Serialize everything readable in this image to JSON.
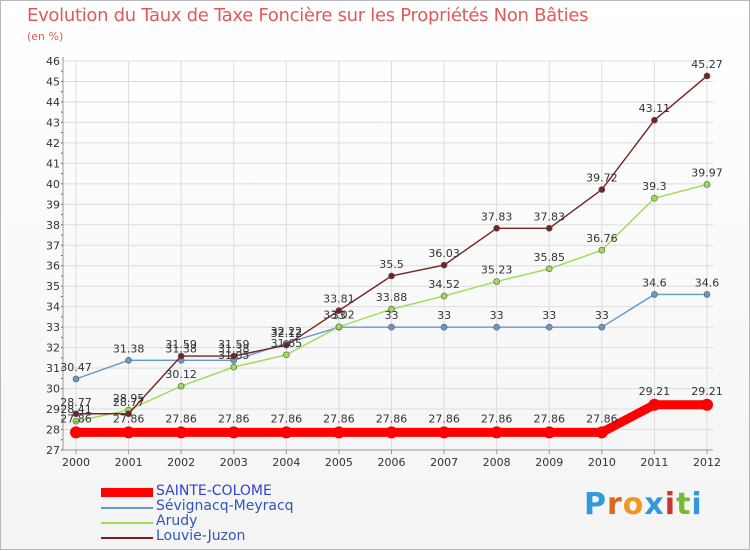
{
  "chart_data": {
    "type": "line",
    "title": "Evolution du Taux de Taxe Foncière sur les Propriétés Non Bâties",
    "subtitle": "(en %)",
    "categories": [
      "2000",
      "2001",
      "2002",
      "2003",
      "2004",
      "2005",
      "2006",
      "2007",
      "2008",
      "2009",
      "2010",
      "2011",
      "2012"
    ],
    "ylim": [
      27,
      46
    ],
    "yticks": [
      27,
      28,
      29,
      30,
      31,
      32,
      33,
      34,
      35,
      36,
      37,
      38,
      39,
      40,
      41,
      42,
      43,
      44,
      45,
      46
    ],
    "grid": true,
    "legend_position": "bottom-left",
    "series": [
      {
        "name": "SAINTE-COLOME",
        "color": "#ff0000",
        "values": [
          27.86,
          27.86,
          27.86,
          27.86,
          27.86,
          27.86,
          27.86,
          27.86,
          27.86,
          27.86,
          27.86,
          29.21,
          29.21
        ],
        "labels": [
          "27.86",
          "27.86",
          "27.86",
          "27.86",
          "27.86",
          "27.86",
          "27.86",
          "27.86",
          "27.86",
          "27.86",
          "27.86",
          "29.21",
          "29.21"
        ]
      },
      {
        "name": "Sévignacq-Meyracq",
        "color": "#6699cc",
        "values": [
          30.47,
          31.38,
          31.38,
          31.38,
          32.22,
          33,
          33,
          33,
          33,
          33,
          33,
          34.6,
          34.6
        ],
        "labels": [
          "30.47",
          "31.38",
          "31.38",
          "31.38",
          "32.22",
          "33",
          "33",
          "33",
          "33",
          "33",
          "33",
          "34.6",
          "34.6"
        ]
      },
      {
        "name": "Arudy",
        "color": "#99dd55",
        "values": [
          28.41,
          28.95,
          30.12,
          31.05,
          31.65,
          33.02,
          33.88,
          34.52,
          35.23,
          35.85,
          36.76,
          39.3,
          39.97
        ],
        "labels": [
          "28.41",
          "28.95",
          "30.12",
          "31.05",
          "31.65",
          "33.02",
          "33.88",
          "34.52",
          "35.23",
          "35.85",
          "36.76",
          "39.3",
          "39.97"
        ]
      },
      {
        "name": "Louvie-Juzon",
        "color": "#772222",
        "values": [
          28.77,
          28.77,
          31.59,
          31.59,
          32.12,
          33.81,
          35.5,
          36.03,
          37.83,
          37.83,
          39.72,
          43.11,
          45.27
        ],
        "labels": [
          "28.77",
          "28.77",
          "31.59",
          "31.59",
          "32.12",
          "33.81",
          "35.5",
          "36.03",
          "37.83",
          "37.83",
          "39.72",
          "43.11",
          "45.27"
        ]
      }
    ]
  },
  "logo": {
    "text": "Proxiti",
    "letters": [
      "P",
      "r",
      "o",
      "x",
      "i",
      "t",
      "i"
    ],
    "colors": [
      "#3399dd",
      "#dd6622",
      "#ee9922",
      "#3399dd",
      "#cc3333",
      "#77bb33",
      "#3399dd"
    ]
  }
}
